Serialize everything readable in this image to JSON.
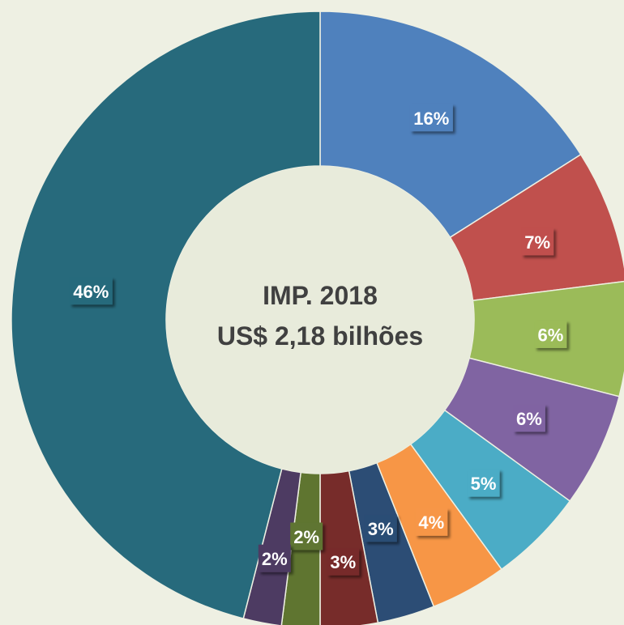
{
  "chart_data": {
    "type": "donut",
    "title": "IMP. 2018",
    "subtitle": "US$ 2,18 bilhões",
    "values": [
      16,
      7,
      6,
      6,
      5,
      4,
      3,
      3,
      2,
      2,
      46
    ],
    "value_labels": [
      "16%",
      "7%",
      "6%",
      "6%",
      "5%",
      "4%",
      "3%",
      "3%",
      "2%",
      "2%",
      "46%"
    ],
    "colors": [
      "#4f81bd",
      "#c0504d",
      "#9bbb59",
      "#8064a2",
      "#4bacc6",
      "#f79646",
      "#2c4d75",
      "#772c2a",
      "#5f7530",
      "#4d3b62",
      "#276a7c"
    ]
  }
}
